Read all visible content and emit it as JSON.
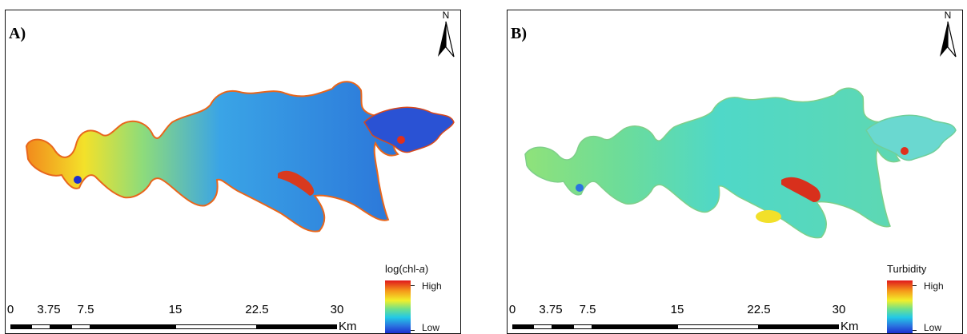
{
  "panels": [
    {
      "label": "A)",
      "north_label": "N",
      "legend": {
        "title": "log(chl-",
        "title_italic": "a",
        "title_end": ")",
        "high": "High",
        "low": "Low"
      },
      "scale": {
        "ticks": [
          "0",
          "3.75",
          "7.5",
          "15",
          "22.5",
          "30"
        ],
        "unit": "Km"
      }
    },
    {
      "label": "B)",
      "north_label": "N",
      "legend": {
        "title": "Turbidity",
        "title_italic": "",
        "title_end": "",
        "high": "High",
        "low": "Low"
      },
      "scale": {
        "ticks": [
          "0",
          "3.75",
          "7.5",
          "15",
          "22.5",
          "30"
        ],
        "unit": "Km"
      }
    }
  ],
  "colors": {
    "ramp_high": "#e0181c",
    "ramp_mid": "#f2ef2a",
    "ramp_low": "#1c2fd0",
    "panel_a_water": "#2f8fe6",
    "panel_b_water": "#4fd8c8"
  }
}
